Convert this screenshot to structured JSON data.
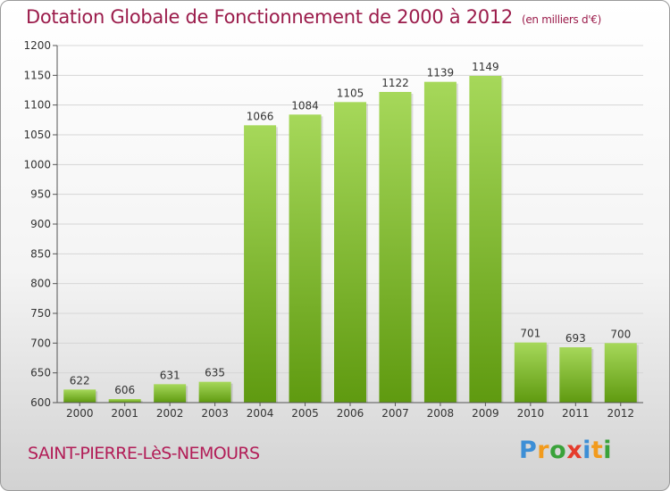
{
  "header": {
    "title": "Dotation Globale de Fonctionnement de 2000 à 2012",
    "unit": "(en milliers d'€)"
  },
  "footer": {
    "commune": "SAINT-PIERRE-LèS-NEMOURS"
  },
  "brand": {
    "letters": [
      "P",
      "r",
      "o",
      "x",
      "i",
      "t",
      "i"
    ],
    "colors": [
      "#3d8fd6",
      "#f29b1d",
      "#3aa23a",
      "#e53b2c",
      "#3d8fd6",
      "#f29b1d",
      "#3aa23a"
    ]
  },
  "colors": {
    "bar_top": "#a6d85a",
    "bar_bottom": "#5f9a10",
    "title": "#9b1c4b"
  },
  "chart_data": {
    "type": "bar",
    "title": "Dotation Globale de Fonctionnement de 2000 à 2012",
    "categories": [
      "2000",
      "2001",
      "2002",
      "2003",
      "2004",
      "2005",
      "2006",
      "2007",
      "2008",
      "2009",
      "2010",
      "2011",
      "2012"
    ],
    "values": [
      622,
      606,
      631,
      635,
      1066,
      1084,
      1105,
      1122,
      1139,
      1149,
      701,
      693,
      700
    ],
    "ylim": [
      600,
      1200
    ],
    "yticks": [
      600,
      650,
      700,
      750,
      800,
      850,
      900,
      950,
      1000,
      1050,
      1100,
      1150,
      1200
    ],
    "grid": true,
    "xlabel": "",
    "ylabel": ""
  }
}
